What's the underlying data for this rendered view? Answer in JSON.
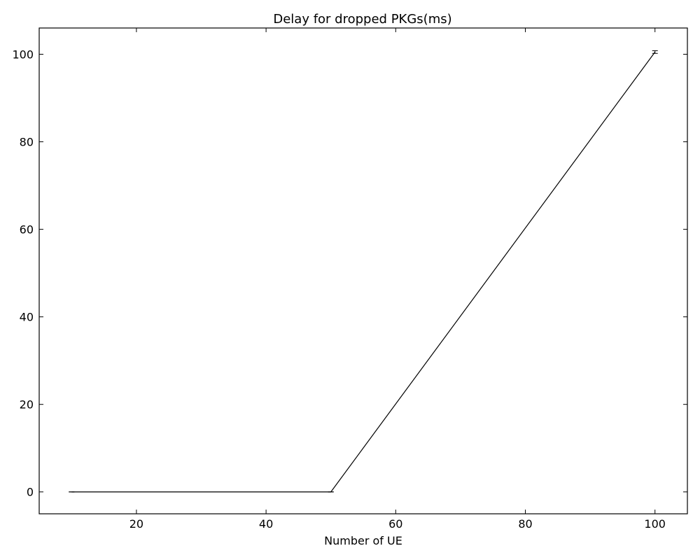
{
  "chart_data": {
    "type": "line",
    "title": "Delay for dropped PKGs(ms)",
    "xlabel": "Number of UE",
    "ylabel": "",
    "xlim": [
      5,
      105
    ],
    "ylim": [
      -5,
      106
    ],
    "xticks": [
      20,
      40,
      60,
      80,
      100
    ],
    "yticks": [
      0,
      20,
      40,
      60,
      80,
      100
    ],
    "grid": false,
    "series": [
      {
        "color": "#000000",
        "x": [
          10,
          50,
          100
        ],
        "y": [
          0,
          0,
          100.5
        ],
        "yerr": [
          0,
          0,
          0.3
        ]
      }
    ]
  }
}
